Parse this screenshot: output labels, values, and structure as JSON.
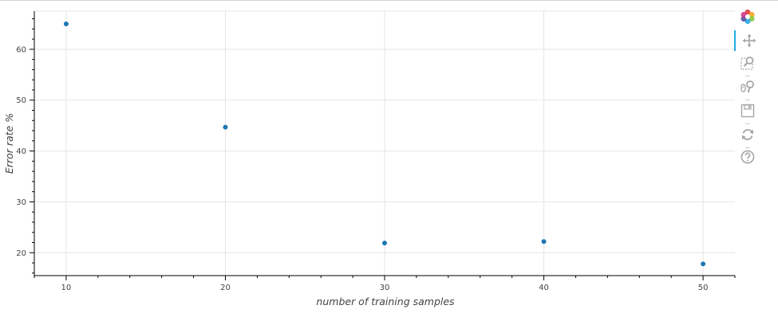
{
  "toolbar": {
    "tools": [
      {
        "name": "bokeh-logo",
        "icon": "bokeh-logo-icon",
        "active": false
      },
      {
        "name": "pan",
        "icon": "pan-icon",
        "active": true
      },
      {
        "name": "box-zoom",
        "icon": "box-zoom-icon",
        "active": false
      },
      {
        "name": "wheel-zoom",
        "icon": "wheel-zoom-icon",
        "active": false
      },
      {
        "name": "save",
        "icon": "save-icon",
        "active": false
      },
      {
        "name": "reset",
        "icon": "reset-icon",
        "active": false
      },
      {
        "name": "help",
        "icon": "help-icon",
        "active": false
      }
    ],
    "active_color": "#26aae1",
    "icon_color": "#a6a6a6"
  },
  "chart_data": {
    "type": "scatter",
    "x": [
      10,
      20,
      30,
      40,
      50
    ],
    "y": [
      65,
      44.7,
      21.9,
      22.2,
      17.8
    ],
    "xlabel": "number of training samples",
    "ylabel": "Error rate %",
    "xlim": [
      8,
      52
    ],
    "ylim": [
      15.5,
      67.5
    ],
    "xticks": [
      10,
      20,
      30,
      40,
      50
    ],
    "yticks": [
      20,
      30,
      40,
      50,
      60
    ],
    "x_minor_step": 2,
    "y_minor_step": 2,
    "grid": true,
    "marker_color": "#1f77b4",
    "grid_color": "#e5e5e5"
  }
}
